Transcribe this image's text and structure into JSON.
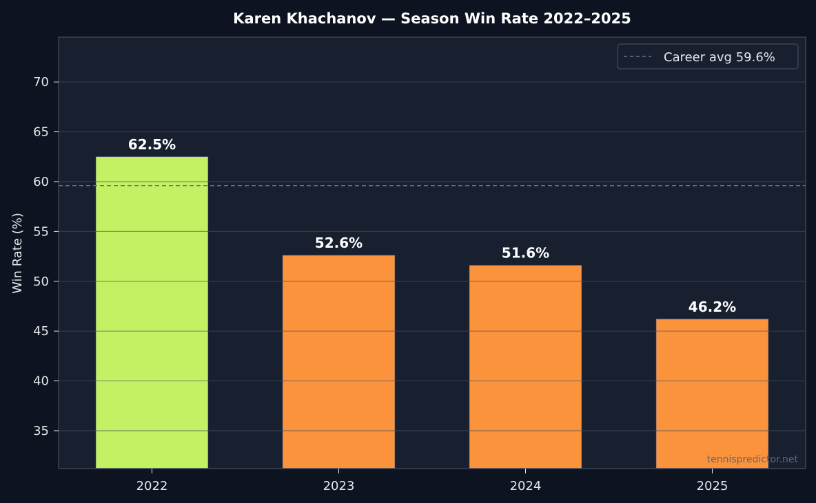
{
  "chart_data": {
    "type": "bar",
    "title": "Karen Khachanov — Season Win Rate 2022–2025",
    "xlabel": "",
    "ylabel": "Win Rate (%)",
    "categories": [
      "2022",
      "2023",
      "2024",
      "2025"
    ],
    "values": [
      62.5,
      52.6,
      51.6,
      46.2
    ],
    "value_labels": [
      "62.5%",
      "52.6%",
      "51.6%",
      "46.2%"
    ],
    "bar_colors": [
      "#c4f064",
      "#fb923c",
      "#fb923c",
      "#fb923c"
    ],
    "ylim": [
      31.2,
      74.5
    ],
    "yticks": [
      35,
      40,
      45,
      50,
      55,
      60,
      65,
      70
    ],
    "reference_line": {
      "value": 59.6,
      "label": "Career avg 59.6%",
      "color": "#6b7280",
      "style": "dashed"
    },
    "legend": {
      "placement": "top-right",
      "entries": [
        "Career avg 59.6%"
      ]
    },
    "grid": true,
    "watermark": "tennispredictor.net"
  },
  "colors": {
    "figure_background": "#0d1320",
    "plot_background": "#181f2f",
    "grid": "#243145",
    "axis_border": "#3a4556",
    "text": "#ffffff",
    "tick_text": "#e5e7eb",
    "watermark": "#5f6776"
  }
}
